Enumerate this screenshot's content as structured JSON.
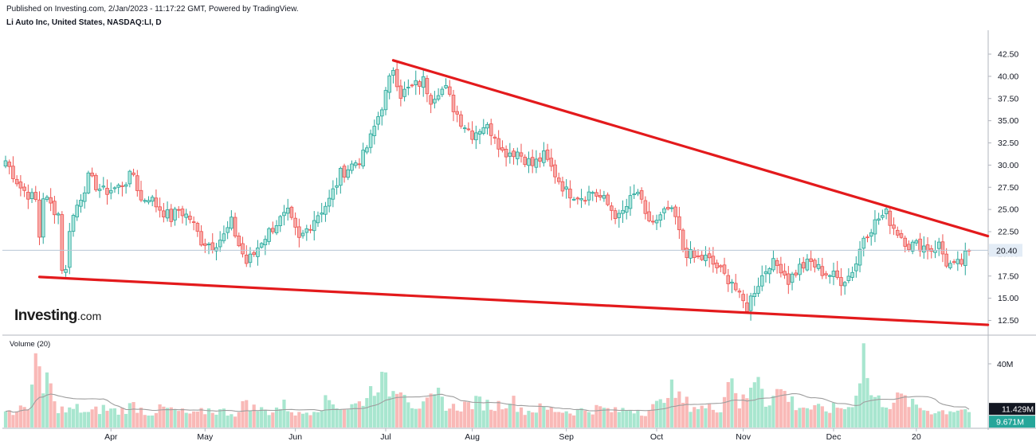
{
  "header": {
    "published": "Published on Investing.com, 2/Jan/2023 - 11:17:22 GMT, Powered by TradingView.",
    "symbol": "Li Auto Inc, United States, NASDAQ:LI, D"
  },
  "logo": {
    "brand": "Investing",
    "suffix": ".com"
  },
  "colors": {
    "up": "#26a69a",
    "up_fill": "#ace5dc",
    "down": "#ef5350",
    "down_fill": "#f7a9a7",
    "trend": "#e31a1c",
    "ma": "#9e9e9e",
    "axis": "#131722"
  },
  "chart_data": [
    {
      "type": "candlestick",
      "price_axis": {
        "ticks": [
          "42.50",
          "40.00",
          "37.50",
          "35.00",
          "32.50",
          "30.00",
          "27.50",
          "25.00",
          "22.50",
          "20.00",
          "17.50",
          "15.00",
          "12.50"
        ],
        "ylim": [
          11.0,
          44.0
        ]
      },
      "time_axis": {
        "labels": [
          "Apr",
          "May",
          "Jun",
          "Jul",
          "Aug",
          "Sep",
          "Oct",
          "Nov",
          "Dec",
          "20"
        ]
      },
      "last_price": {
        "label": "20.40",
        "value": 20.4
      },
      "anchors": [
        [
          0,
          30.5
        ],
        [
          4,
          27.5
        ],
        [
          8,
          26.0
        ],
        [
          9,
          22.0
        ],
        [
          10,
          26.5
        ],
        [
          13,
          25.0
        ],
        [
          14,
          24.5
        ],
        [
          15,
          18.5
        ],
        [
          16,
          18.0
        ],
        [
          17,
          23.0
        ],
        [
          19,
          25.5
        ],
        [
          22,
          28.5
        ],
        [
          26,
          27.0
        ],
        [
          30,
          27.5
        ],
        [
          34,
          29.0
        ],
        [
          36,
          26.0
        ],
        [
          38,
          26.5
        ],
        [
          40,
          25.5
        ],
        [
          44,
          24.0
        ],
        [
          46,
          25.0
        ],
        [
          49,
          24.0
        ],
        [
          52,
          21.5
        ],
        [
          55,
          21.0
        ],
        [
          58,
          22.0
        ],
        [
          60,
          23.5
        ],
        [
          62,
          21.0
        ],
        [
          64,
          19.0
        ],
        [
          66,
          20.0
        ],
        [
          68,
          21.5
        ],
        [
          72,
          23.5
        ],
        [
          75,
          24.5
        ],
        [
          78,
          21.5
        ],
        [
          82,
          24.0
        ],
        [
          86,
          26.0
        ],
        [
          89,
          29.0
        ],
        [
          92,
          30.0
        ],
        [
          95,
          31.0
        ],
        [
          97,
          33.0
        ],
        [
          99,
          35.5
        ],
        [
          101,
          38.0
        ],
        [
          103,
          41.0
        ],
        [
          105,
          38.0
        ],
        [
          107,
          38.5
        ],
        [
          109,
          39.0
        ],
        [
          111,
          39.5
        ],
        [
          113,
          37.5
        ],
        [
          115,
          38.5
        ],
        [
          117,
          38.5
        ],
        [
          119,
          36.5
        ],
        [
          121,
          35.0
        ],
        [
          124,
          33.5
        ],
        [
          127,
          34.5
        ],
        [
          130,
          33.5
        ],
        [
          132,
          31.5
        ],
        [
          136,
          31.5
        ],
        [
          140,
          30.0
        ],
        [
          143,
          31.0
        ],
        [
          146,
          29.0
        ],
        [
          149,
          27.0
        ],
        [
          153,
          26.5
        ],
        [
          156,
          27.0
        ],
        [
          159,
          26.0
        ],
        [
          161,
          25.0
        ],
        [
          163,
          24.0
        ],
        [
          166,
          26.0
        ],
        [
          168,
          27.0
        ],
        [
          170,
          24.0
        ],
        [
          173,
          23.5
        ],
        [
          176,
          25.0
        ],
        [
          178,
          24.0
        ],
        [
          180,
          20.5
        ],
        [
          183,
          19.5
        ],
        [
          186,
          19.5
        ],
        [
          189,
          18.5
        ],
        [
          191,
          17.5
        ],
        [
          193,
          17.0
        ],
        [
          195,
          15.0
        ],
        [
          197,
          14.0
        ],
        [
          199,
          16.0
        ],
        [
          201,
          17.5
        ],
        [
          203,
          19.0
        ],
        [
          206,
          18.5
        ],
        [
          208,
          17.0
        ],
        [
          211,
          18.5
        ],
        [
          214,
          19.0
        ],
        [
          217,
          18.0
        ],
        [
          220,
          17.5
        ],
        [
          222,
          17.0
        ],
        [
          224,
          17.5
        ],
        [
          226,
          19.0
        ],
        [
          228,
          22.0
        ],
        [
          230,
          23.0
        ],
        [
          232,
          24.0
        ],
        [
          234,
          24.5
        ],
        [
          236,
          23.0
        ],
        [
          238,
          22.0
        ],
        [
          240,
          21.0
        ],
        [
          243,
          21.0
        ],
        [
          246,
          20.5
        ],
        [
          248,
          21.0
        ],
        [
          250,
          19.0
        ],
        [
          252,
          18.5
        ],
        [
          254,
          19.0
        ],
        [
          256,
          20.4
        ]
      ],
      "volume_anchors": [
        [
          0,
          11
        ],
        [
          3,
          9
        ],
        [
          6,
          15
        ],
        [
          8,
          40
        ],
        [
          10,
          20
        ],
        [
          11,
          35
        ],
        [
          13,
          14
        ],
        [
          16,
          10
        ],
        [
          19,
          12
        ],
        [
          22,
          9
        ],
        [
          26,
          12
        ],
        [
          30,
          10
        ],
        [
          34,
          14
        ],
        [
          38,
          9
        ],
        [
          42,
          12
        ],
        [
          46,
          10
        ],
        [
          50,
          8
        ],
        [
          54,
          11
        ],
        [
          58,
          10
        ],
        [
          62,
          9
        ],
        [
          64,
          18
        ],
        [
          66,
          12
        ],
        [
          70,
          10
        ],
        [
          74,
          14
        ],
        [
          78,
          8
        ],
        [
          82,
          12
        ],
        [
          86,
          17
        ],
        [
          90,
          12
        ],
        [
          94,
          15
        ],
        [
          97,
          23
        ],
        [
          99,
          30
        ],
        [
          101,
          27
        ],
        [
          103,
          22
        ],
        [
          105,
          30
        ],
        [
          108,
          15
        ],
        [
          111,
          13
        ],
        [
          115,
          20
        ],
        [
          118,
          12
        ],
        [
          122,
          14
        ],
        [
          126,
          16
        ],
        [
          130,
          13
        ],
        [
          134,
          18
        ],
        [
          138,
          10
        ],
        [
          142,
          12
        ],
        [
          146,
          11
        ],
        [
          150,
          10
        ],
        [
          154,
          11
        ],
        [
          158,
          12
        ],
        [
          162,
          10
        ],
        [
          166,
          12
        ],
        [
          170,
          10
        ],
        [
          174,
          15
        ],
        [
          176,
          26
        ],
        [
          179,
          18
        ],
        [
          182,
          14
        ],
        [
          186,
          12
        ],
        [
          190,
          13
        ],
        [
          193,
          36
        ],
        [
          195,
          14
        ],
        [
          198,
          22
        ],
        [
          200,
          38
        ],
        [
          202,
          16
        ],
        [
          206,
          24
        ],
        [
          210,
          14
        ],
        [
          214,
          12
        ],
        [
          218,
          11
        ],
        [
          222,
          13
        ],
        [
          224,
          12
        ],
        [
          226,
          22
        ],
        [
          228,
          48
        ],
        [
          230,
          20
        ],
        [
          232,
          17
        ],
        [
          235,
          15
        ],
        [
          238,
          19
        ],
        [
          241,
          14
        ],
        [
          245,
          11
        ],
        [
          248,
          10
        ],
        [
          251,
          11
        ],
        [
          254,
          12
        ],
        [
          256,
          10
        ]
      ],
      "volume_axis": {
        "ticks": [
          "40M"
        ],
        "ylim": [
          0,
          50
        ]
      },
      "volume_series": [
        {
          "name": "Volume (20)",
          "type": "bar"
        },
        {
          "type": "line",
          "last_label": "11.429M",
          "last_value": 11.429
        }
      ],
      "volume_last_label": "9.671M",
      "volume_last_value": 9.671,
      "trendlines": [
        {
          "from": [
            103,
            41.8
          ],
          "to": [
            261,
            22.0
          ]
        },
        {
          "from": [
            9,
            17.4
          ],
          "to": [
            261,
            12.0
          ]
        }
      ]
    }
  ]
}
